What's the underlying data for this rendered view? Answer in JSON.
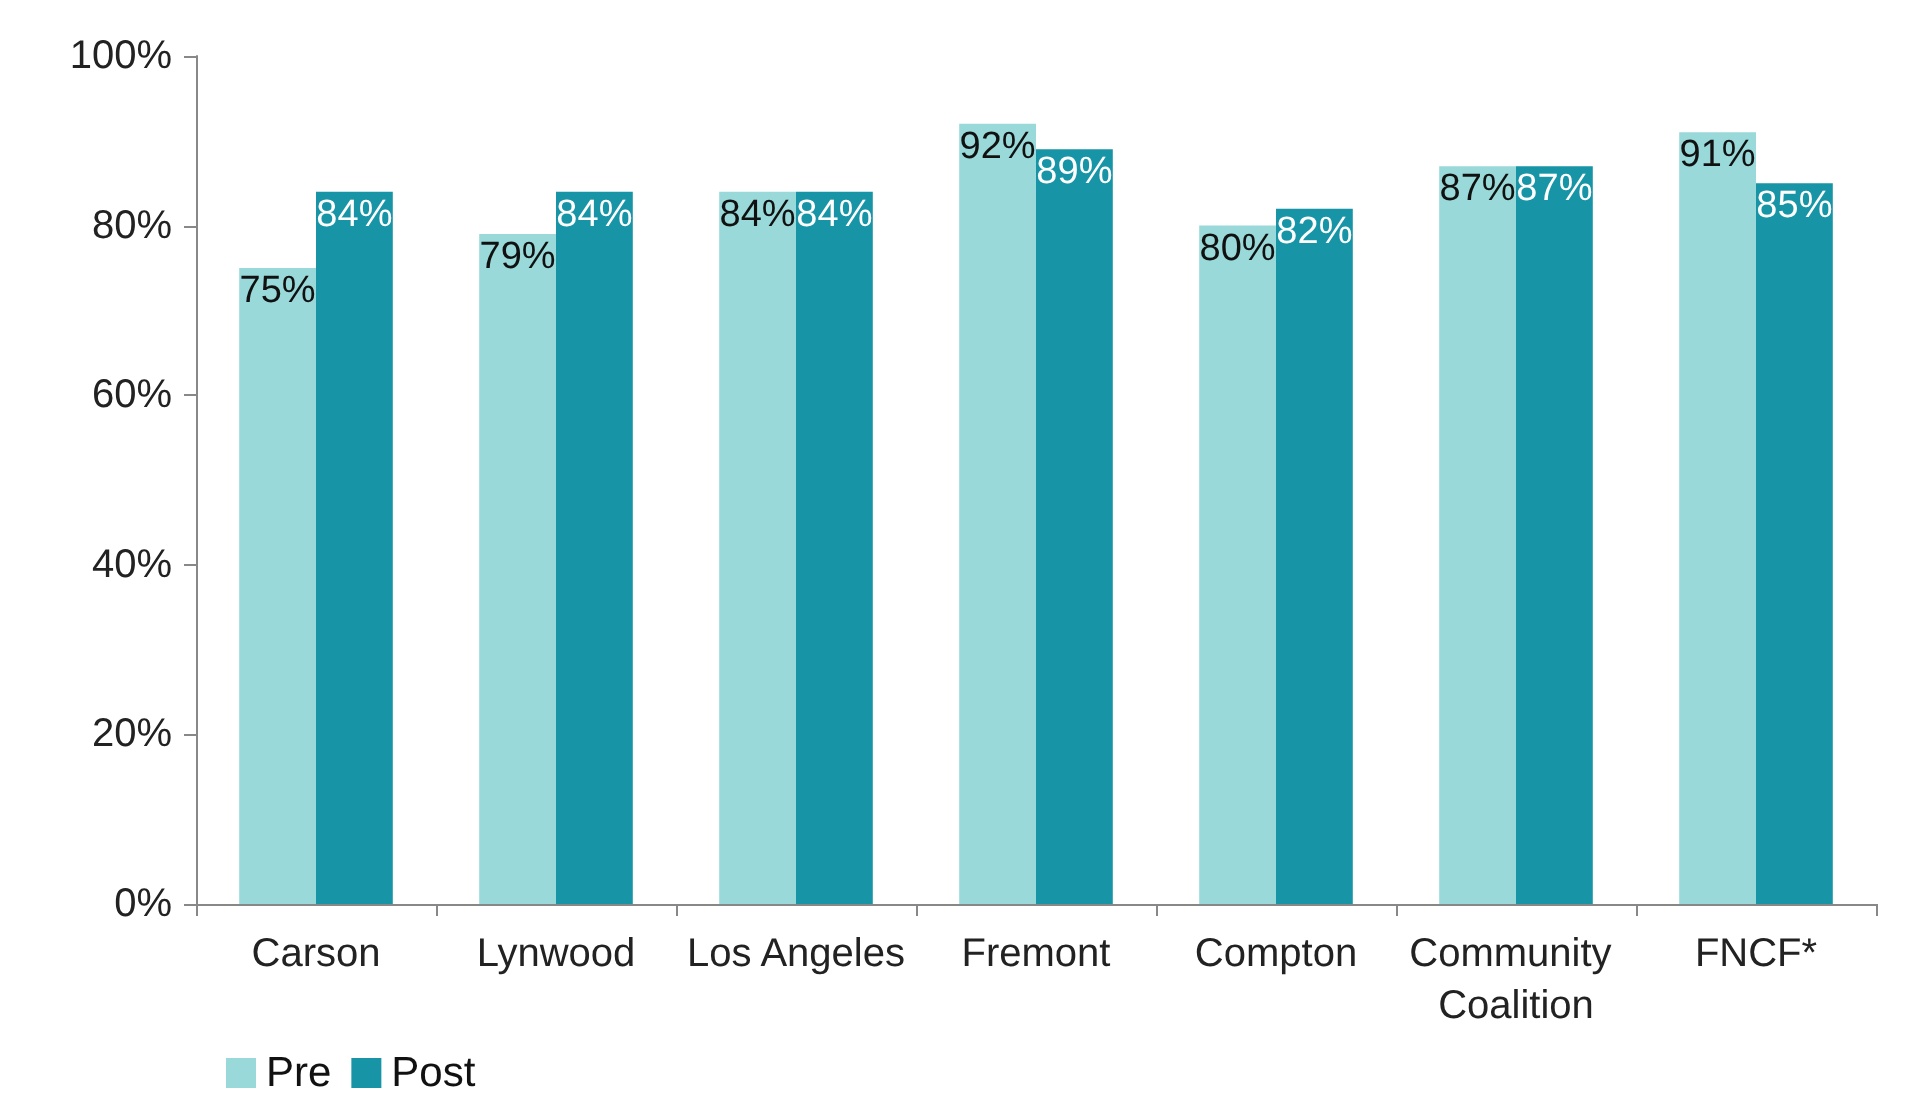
{
  "chart_data": {
    "type": "bar",
    "categories": [
      "Carson",
      "Lynwood",
      "Los Angeles",
      "Fremont",
      "Compton",
      "Community Coalition",
      "FNCF*"
    ],
    "series": [
      {
        "name": "Pre",
        "color": "#99d9d9",
        "values": [
          75,
          79,
          84,
          92,
          80,
          87,
          91
        ],
        "value_labels": [
          "75%",
          "79%",
          "84%",
          "92%",
          "80%",
          "87%",
          "91%"
        ]
      },
      {
        "name": "Post",
        "color": "#1795a6",
        "values": [
          84,
          84,
          84,
          89,
          82,
          87,
          85
        ],
        "value_labels": [
          "84%",
          "84%",
          "84%",
          "89%",
          "82%",
          "87%",
          "85%"
        ]
      }
    ],
    "ylim": [
      0,
      100
    ],
    "yticks": [
      {
        "value": 0,
        "label": "0%"
      },
      {
        "value": 20,
        "label": "20%"
      },
      {
        "value": 40,
        "label": "40%"
      },
      {
        "value": 60,
        "label": "60%"
      },
      {
        "value": 80,
        "label": "80%"
      },
      {
        "value": 100,
        "label": "100%"
      }
    ],
    "grid": false,
    "legend": "bottom left"
  }
}
